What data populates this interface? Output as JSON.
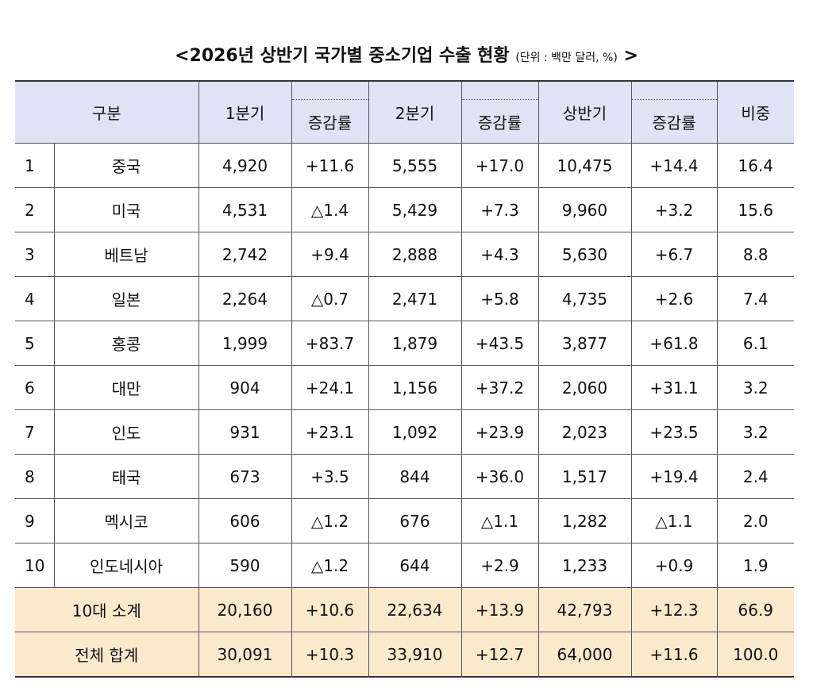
{
  "title": {
    "text": "<2026년 상반기 국가별 중소기업 수출 현황",
    "unit": "(단위 : 백만 달러, %)",
    "close": ">"
  },
  "headers": {
    "category": "구분",
    "q1": "1분기",
    "q1_growth": "증감률",
    "q2": "2분기",
    "q2_growth": "증감률",
    "h1": "상반기",
    "h1_growth": "증감률",
    "share": "비중"
  },
  "rows": [
    {
      "rank": "1",
      "country": "중국",
      "q1": "4,920",
      "q1_growth": "+11.6",
      "q2": "5,555",
      "q2_growth": "+17.0",
      "h1": "10,475",
      "h1_growth": "+14.4",
      "share": "16.4"
    },
    {
      "rank": "2",
      "country": "미국",
      "q1": "4,531",
      "q1_growth": "△1.4",
      "q2": "5,429",
      "q2_growth": "+7.3",
      "h1": "9,960",
      "h1_growth": "+3.2",
      "share": "15.6"
    },
    {
      "rank": "3",
      "country": "베트남",
      "q1": "2,742",
      "q1_growth": "+9.4",
      "q2": "2,888",
      "q2_growth": "+4.3",
      "h1": "5,630",
      "h1_growth": "+6.7",
      "share": "8.8"
    },
    {
      "rank": "4",
      "country": "일본",
      "q1": "2,264",
      "q1_growth": "△0.7",
      "q2": "2,471",
      "q2_growth": "+5.8",
      "h1": "4,735",
      "h1_growth": "+2.6",
      "share": "7.4"
    },
    {
      "rank": "5",
      "country": "홍콩",
      "q1": "1,999",
      "q1_growth": "+83.7",
      "q2": "1,879",
      "q2_growth": "+43.5",
      "h1": "3,877",
      "h1_growth": "+61.8",
      "share": "6.1"
    },
    {
      "rank": "6",
      "country": "대만",
      "q1": "904",
      "q1_growth": "+24.1",
      "q2": "1,156",
      "q2_growth": "+37.2",
      "h1": "2,060",
      "h1_growth": "+31.1",
      "share": "3.2"
    },
    {
      "rank": "7",
      "country": "인도",
      "q1": "931",
      "q1_growth": "+23.1",
      "q2": "1,092",
      "q2_growth": "+23.9",
      "h1": "2,023",
      "h1_growth": "+23.5",
      "share": "3.2"
    },
    {
      "rank": "8",
      "country": "태국",
      "q1": "673",
      "q1_growth": "+3.5",
      "q2": "844",
      "q2_growth": "+36.0",
      "h1": "1,517",
      "h1_growth": "+19.4",
      "share": "2.4"
    },
    {
      "rank": "9",
      "country": "멕시코",
      "q1": "606",
      "q1_growth": "△1.2",
      "q2": "676",
      "q2_growth": "△1.1",
      "h1": "1,282",
      "h1_growth": "△1.1",
      "share": "2.0"
    },
    {
      "rank": "10",
      "country": "인도네시아",
      "q1": "590",
      "q1_growth": "△1.2",
      "q2": "644",
      "q2_growth": "+2.9",
      "h1": "1,233",
      "h1_growth": "+0.9",
      "share": "1.9"
    }
  ],
  "subtotal": {
    "label": "10대 소계",
    "q1": "20,160",
    "q1_growth": "+10.6",
    "q2": "22,634",
    "q2_growth": "+13.9",
    "h1": "42,793",
    "h1_growth": "+12.3",
    "share": "66.9"
  },
  "total": {
    "label": "전체 합계",
    "q1": "30,091",
    "q1_growth": "+10.3",
    "q2": "33,910",
    "q2_growth": "+12.7",
    "h1": "64,000",
    "h1_growth": "+11.6",
    "share": "100.0"
  },
  "colors": {
    "header_bg": "#dfe3f4",
    "summary_bg": "#fbe9cb"
  }
}
